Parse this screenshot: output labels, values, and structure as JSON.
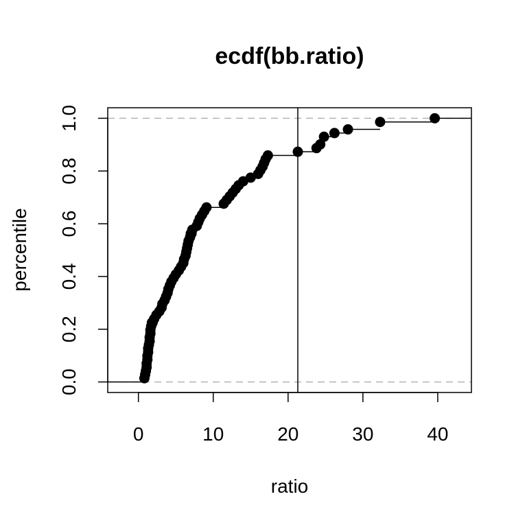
{
  "chart_data": {
    "type": "scatter",
    "title": "ecdf(bb.ratio)",
    "xlabel": "ratio",
    "ylabel": "percentile",
    "xlim": [
      -4.1,
      44.5
    ],
    "ylim": [
      -0.04,
      1.04
    ],
    "x_ticks": [
      0,
      10,
      20,
      30,
      40
    ],
    "x_tick_labels": [
      "0",
      "10",
      "20",
      "30",
      "40"
    ],
    "y_ticks": [
      0,
      0.2,
      0.4,
      0.6,
      0.8,
      1.0
    ],
    "y_tick_labels": [
      "0.0",
      "0.2",
      "0.4",
      "0.6",
      "0.8",
      "1.0"
    ],
    "reference_lines": {
      "horizontal": [
        0,
        1
      ],
      "vertical": [
        21.3
      ]
    },
    "colors": {
      "points": "#000000",
      "step_line": "#000000",
      "reference_line": "#b3b3b3",
      "vline": "#000000"
    },
    "series": [
      {
        "x": [
          0.8,
          0.9,
          1.0,
          1.1,
          1.1,
          1.2,
          1.2,
          1.3,
          1.3,
          1.4,
          1.5,
          1.5,
          1.6,
          1.6,
          1.7,
          1.8,
          1.9,
          2.1,
          2.4,
          2.8,
          3.1,
          3.2,
          3.5,
          3.7,
          3.9,
          4.0,
          4.2,
          4.4,
          4.7,
          5.0,
          5.4,
          5.7,
          6.0,
          6.1,
          6.3,
          6.4,
          6.5,
          6.6,
          6.7,
          6.9,
          7.0,
          7.1,
          7.2,
          7.8,
          8.0,
          8.2,
          8.5,
          8.8,
          9.1,
          11.4,
          11.8,
          12.2,
          12.6,
          13.0,
          13.4,
          14.0,
          15.0,
          16.0,
          16.3,
          16.6,
          16.8,
          17.0,
          17.3,
          21.3,
          23.8,
          24.3,
          24.8,
          26.2,
          28.0,
          32.3,
          39.6
        ],
        "y": [
          0.014,
          0.028,
          0.042,
          0.056,
          0.07,
          0.085,
          0.099,
          0.113,
          0.127,
          0.141,
          0.155,
          0.169,
          0.183,
          0.197,
          0.211,
          0.225,
          0.225,
          0.239,
          0.254,
          0.268,
          0.282,
          0.296,
          0.31,
          0.324,
          0.338,
          0.352,
          0.366,
          0.38,
          0.394,
          0.408,
          0.423,
          0.437,
          0.451,
          0.465,
          0.479,
          0.493,
          0.507,
          0.521,
          0.535,
          0.549,
          0.563,
          0.563,
          0.577,
          0.592,
          0.606,
          0.62,
          0.634,
          0.648,
          0.662,
          0.676,
          0.69,
          0.704,
          0.718,
          0.732,
          0.746,
          0.761,
          0.775,
          0.789,
          0.803,
          0.817,
          0.831,
          0.845,
          0.859,
          0.873,
          0.887,
          0.901,
          0.93,
          0.944,
          0.958,
          0.986,
          1.0
        ]
      }
    ]
  }
}
